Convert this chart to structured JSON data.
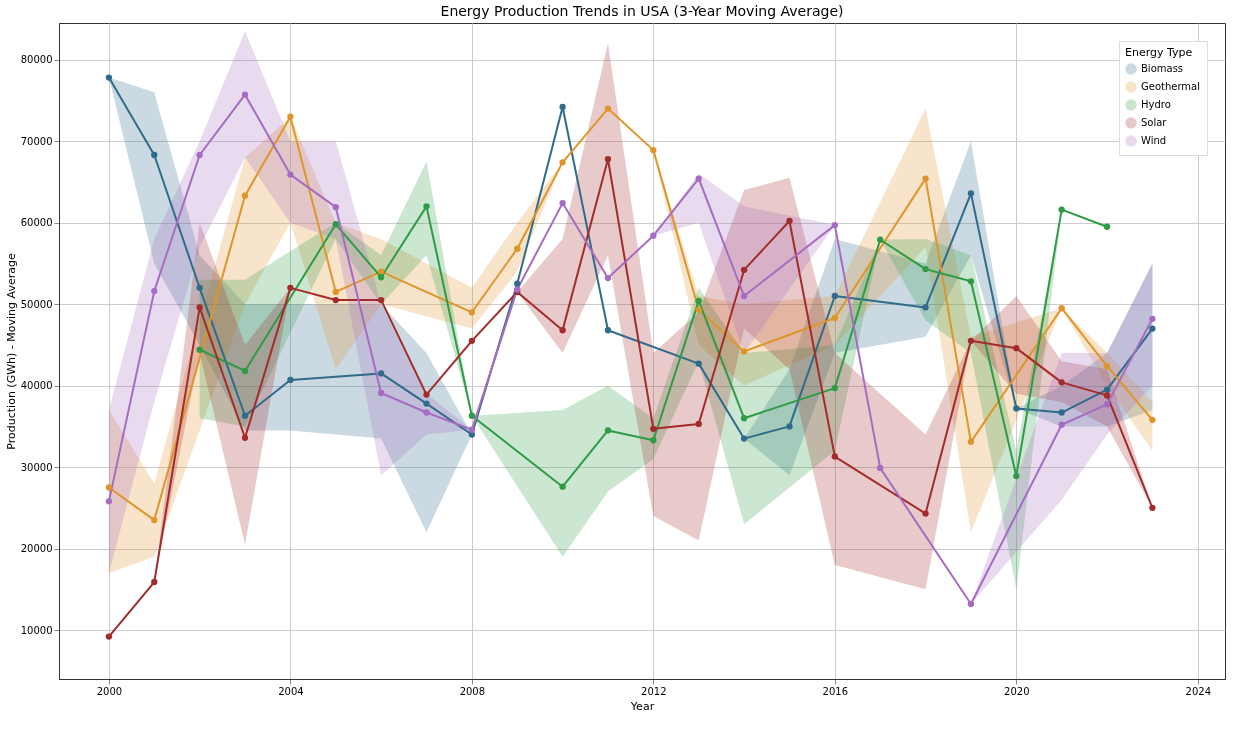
{
  "chart_data": {
    "type": "line",
    "title": "Energy Production Trends in USA (3-Year Moving Average)",
    "xlabel": "Year",
    "ylabel": "Production (GWh) - Moving Average",
    "legend_title": "Energy Type",
    "legend": "top right",
    "grid": true,
    "marker": "circle",
    "line_style": "solid",
    "xlim": [
      1998.9,
      2024.6
    ],
    "xticks": [
      2000,
      2004,
      2008,
      2012,
      2016,
      2020,
      2024
    ],
    "ylim": [
      4000,
      84500
    ],
    "yticks": [
      10000,
      20000,
      30000,
      40000,
      50000,
      60000,
      70000,
      80000
    ],
    "series": [
      {
        "name": "Biomass",
        "color": "#2f6b8a",
        "x": [
          2000,
          2001,
          2002,
          2003,
          2004,
          2006,
          2007,
          2008,
          2009,
          2010,
          2011,
          2013,
          2014,
          2015,
          2016,
          2018,
          2019,
          2020,
          2021,
          2022,
          2023
        ],
        "values": [
          77800,
          68300,
          52000,
          36300,
          40700,
          41500,
          37800,
          34000,
          52500,
          74200,
          46800,
          42700,
          33500,
          35000,
          51000,
          49600,
          63600,
          37200,
          36700,
          39500,
          47000
        ],
        "lower": [
          77800,
          55000,
          45000,
          34500,
          34500,
          33500,
          22000,
          34000,
          52500,
          74200,
          46800,
          42700,
          33500,
          29000,
          44000,
          46000,
          56000,
          37200,
          35000,
          35000,
          37000
        ],
        "upper": [
          77800,
          76000,
          56000,
          50000,
          50000,
          50000,
          44000,
          34000,
          52500,
          74200,
          46800,
          42700,
          33500,
          42000,
          58000,
          55000,
          70000,
          37200,
          40000,
          44000,
          55000
        ]
      },
      {
        "name": "Geothermal",
        "color": "#e0952a",
        "x": [
          2000,
          2001,
          2003,
          2004,
          2005,
          2006,
          2008,
          2009,
          2010,
          2011,
          2012,
          2013,
          2014,
          2016,
          2018,
          2019,
          2021,
          2022,
          2023
        ],
        "values": [
          27500,
          23500,
          63300,
          73000,
          51500,
          54000,
          49000,
          56800,
          67400,
          74000,
          68900,
          49300,
          44200,
          48300,
          65400,
          33100,
          49500,
          42400,
          35800
        ],
        "lower": [
          17000,
          19000,
          50000,
          60000,
          42000,
          50000,
          47000,
          54000,
          67400,
          74000,
          68900,
          45000,
          40000,
          45000,
          57000,
          22000,
          49500,
          40000,
          32000
        ],
        "upper": [
          37000,
          28000,
          68000,
          73000,
          60000,
          58000,
          52000,
          60000,
          67400,
          74000,
          68900,
          51000,
          50000,
          51000,
          74000,
          46000,
          49500,
          44000,
          38000
        ]
      },
      {
        "name": "Hydro",
        "color": "#2e9b46",
        "x": [
          2002,
          2003,
          2005,
          2006,
          2007,
          2008,
          2010,
          2011,
          2012,
          2013,
          2014,
          2016,
          2017,
          2018,
          2019,
          2020,
          2021,
          2022
        ],
        "values": [
          44400,
          41800,
          59800,
          53300,
          62000,
          36300,
          27600,
          34500,
          33300,
          50400,
          36000,
          39700,
          57900,
          54300,
          52800,
          28900,
          61600,
          59500
        ],
        "lower": [
          36000,
          35000,
          58000,
          50000,
          56000,
          36300,
          19000,
          27000,
          31000,
          43000,
          23000,
          32000,
          57900,
          48000,
          44000,
          15000,
          61600,
          59500
        ],
        "upper": [
          53000,
          53000,
          60000,
          56000,
          67500,
          36300,
          37000,
          40000,
          36000,
          52000,
          44000,
          45000,
          57900,
          58000,
          56000,
          32000,
          61600,
          59500
        ]
      },
      {
        "name": "Solar",
        "color": "#a32b2b",
        "x": [
          2000,
          2001,
          2002,
          2003,
          2004,
          2005,
          2006,
          2007,
          2008,
          2009,
          2010,
          2011,
          2012,
          2013,
          2014,
          2015,
          2016,
          2018,
          2019,
          2020,
          2021,
          2022,
          2023
        ],
        "values": [
          9200,
          15900,
          49600,
          33600,
          52000,
          50500,
          50500,
          38900,
          45500,
          51500,
          46800,
          67800,
          34700,
          35300,
          54200,
          60200,
          31300,
          24300,
          45500,
          44600,
          40400,
          38800,
          25000
        ],
        "lower": [
          9200,
          15900,
          44000,
          20500,
          52000,
          50500,
          50500,
          38900,
          45500,
          51500,
          44000,
          56000,
          24000,
          21000,
          47000,
          42000,
          18000,
          15000,
          45500,
          39000,
          38000,
          35000,
          25000
        ],
        "upper": [
          9200,
          15900,
          60000,
          45000,
          52000,
          50500,
          50500,
          38900,
          45500,
          51500,
          58000,
          82000,
          44000,
          49000,
          64000,
          65500,
          44000,
          34000,
          45500,
          51000,
          43000,
          42000,
          25000
        ]
      },
      {
        "name": "Wind",
        "color": "#a56cc1",
        "x": [
          2000,
          2001,
          2002,
          2003,
          2004,
          2005,
          2006,
          2007,
          2008,
          2009,
          2010,
          2011,
          2012,
          2013,
          2014,
          2016,
          2017,
          2019,
          2021,
          2022,
          2023
        ],
        "values": [
          25800,
          51600,
          68300,
          75700,
          65900,
          61900,
          39100,
          36700,
          34600,
          51800,
          62400,
          53200,
          58400,
          65400,
          51000,
          59700,
          29900,
          13200,
          35200,
          37700,
          48200
        ],
        "lower": [
          17000,
          38000,
          57000,
          68000,
          60000,
          58000,
          29000,
          34000,
          34600,
          51800,
          62400,
          53200,
          58400,
          60000,
          44000,
          59700,
          29900,
          13200,
          26000,
          34000,
          40000
        ],
        "upper": [
          37000,
          58000,
          70000,
          83500,
          70000,
          70000,
          50000,
          39000,
          34600,
          51800,
          62400,
          53200,
          58400,
          66000,
          62000,
          59700,
          29900,
          13200,
          44000,
          44000,
          55000
        ]
      }
    ]
  }
}
